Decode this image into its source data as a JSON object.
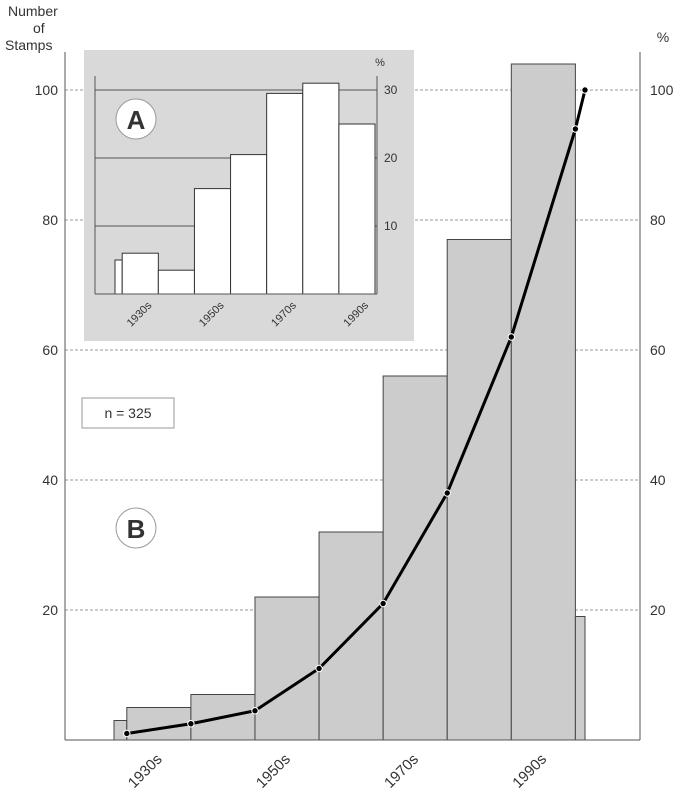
{
  "chart_data": [
    {
      "panel": "B",
      "type": "bar",
      "panel_label": "B",
      "ylabel_left": "Number of Stamps",
      "ylabel_right": "%",
      "n_label": "n = 325",
      "ylim": [
        0,
        100
      ],
      "yticks": [
        20,
        40,
        60,
        80,
        100
      ],
      "right_yticks": [
        20,
        40,
        60,
        80,
        100
      ],
      "tick_labels": [
        "1930s",
        "1950s",
        "1970s",
        "1990s"
      ],
      "grid": true,
      "bars": [
        {
          "x0": 1925,
          "x1": 1927,
          "value": 3
        },
        {
          "x0": 1927,
          "x1": 1937,
          "value": 5
        },
        {
          "x0": 1937,
          "x1": 1947,
          "value": 7
        },
        {
          "x0": 1947,
          "x1": 1957,
          "value": 22
        },
        {
          "x0": 1957,
          "x1": 1967,
          "value": 32
        },
        {
          "x0": 1967,
          "x1": 1977,
          "value": 56
        },
        {
          "x0": 1977,
          "x1": 1987,
          "value": 77
        },
        {
          "x0": 1987,
          "x1": 1997,
          "value": 104
        },
        {
          "x0": 1997,
          "x1": 1998.5,
          "value": 19
        }
      ],
      "cumulative_percent": {
        "x": [
          1927,
          1937,
          1947,
          1957,
          1967,
          1977,
          1987,
          1997,
          1998.5
        ],
        "y": [
          1,
          2.5,
          4.5,
          11,
          21,
          38,
          62,
          94,
          100
        ]
      }
    },
    {
      "panel": "A",
      "type": "bar",
      "panel_label": "A",
      "ylabel_right": "%",
      "ylim": [
        0,
        30
      ],
      "yticks": [
        10,
        20,
        30
      ],
      "tick_labels": [
        "1930s",
        "1950s",
        "1970s",
        "1990s"
      ],
      "grid": true,
      "bars": [
        {
          "x0": 1925,
          "x1": 1927,
          "value": 5
        },
        {
          "x0": 1927,
          "x1": 1937,
          "value": 6
        },
        {
          "x0": 1937,
          "x1": 1947,
          "value": 3.5
        },
        {
          "x0": 1947,
          "x1": 1957,
          "value": 15.5
        },
        {
          "x0": 1957,
          "x1": 1967,
          "value": 20.5
        },
        {
          "x0": 1967,
          "x1": 1977,
          "value": 29.5
        },
        {
          "x0": 1977,
          "x1": 1987,
          "value": 31
        },
        {
          "x0": 1987,
          "x1": 1997,
          "value": 25
        }
      ]
    }
  ],
  "colors": {
    "bar_main": "#cccccc",
    "bar_inset": "#ffffff",
    "inset_background": "#d9d9d9",
    "line": "#000000",
    "grid": "#999999"
  }
}
